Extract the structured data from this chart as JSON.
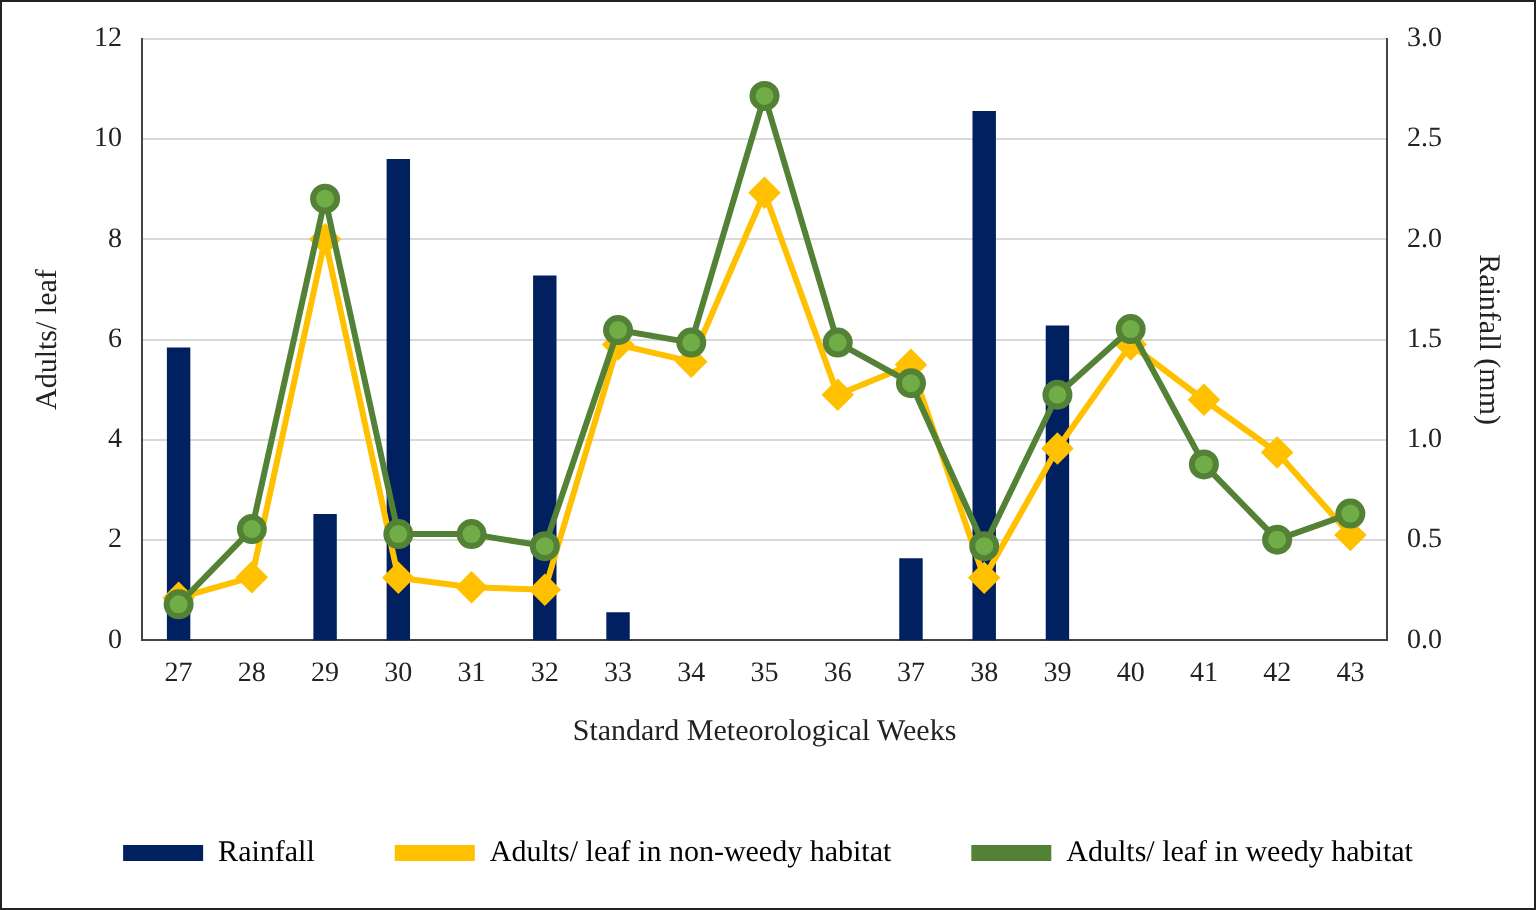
{
  "chart_data": {
    "type": "line",
    "xlabel": "Standard Meteorological Weeks",
    "ylabel": "Adults/ leaf",
    "y2label": "Rainfall (mm)",
    "categories": [
      "27",
      "28",
      "29",
      "30",
      "31",
      "32",
      "33",
      "34",
      "35",
      "36",
      "37",
      "38",
      "39",
      "40",
      "41",
      "42",
      "43"
    ],
    "series": [
      {
        "name": "Rainfall",
        "type": "bar",
        "axis": "y2",
        "color": "#002060",
        "values": [
          1.46,
          0,
          0.63,
          2.4,
          0,
          1.82,
          0.14,
          0,
          0,
          0,
          0.41,
          2.64,
          1.57,
          0,
          0,
          0,
          0
        ]
      },
      {
        "name": "Adults/ leaf in non-weedy habitat",
        "marker": "diamond",
        "color": "#ffc000",
        "values": [
          0.85,
          1.26,
          8.0,
          1.25,
          1.06,
          1.01,
          5.9,
          5.56,
          8.93,
          4.9,
          5.5,
          1.25,
          3.83,
          5.9,
          4.8,
          3.75,
          2.1
        ]
      },
      {
        "name": "Adults/ leaf in weedy habitat",
        "marker": "circle",
        "color": "#538135",
        "values": [
          0.72,
          2.22,
          8.81,
          2.12,
          2.12,
          1.88,
          6.19,
          5.94,
          10.86,
          5.94,
          5.13,
          1.88,
          4.9,
          6.21,
          3.51,
          2.01,
          2.53
        ]
      }
    ],
    "ylim": [
      0,
      12
    ],
    "yticks": [
      0,
      2,
      4,
      6,
      8,
      10,
      12
    ],
    "y2lim": [
      0,
      3
    ],
    "y2ticks": [
      {
        "value": 0,
        "label": "0.0"
      },
      {
        "value": 0.5,
        "label": "0.5"
      },
      {
        "value": 1,
        "label": "1.0"
      },
      {
        "value": 1.5,
        "label": "1.5"
      },
      {
        "value": 2,
        "label": "2.0"
      },
      {
        "value": 2.5,
        "label": "2.5"
      },
      {
        "value": 3,
        "label": "3.0"
      }
    ],
    "grid": "y",
    "legend": "bottom"
  }
}
